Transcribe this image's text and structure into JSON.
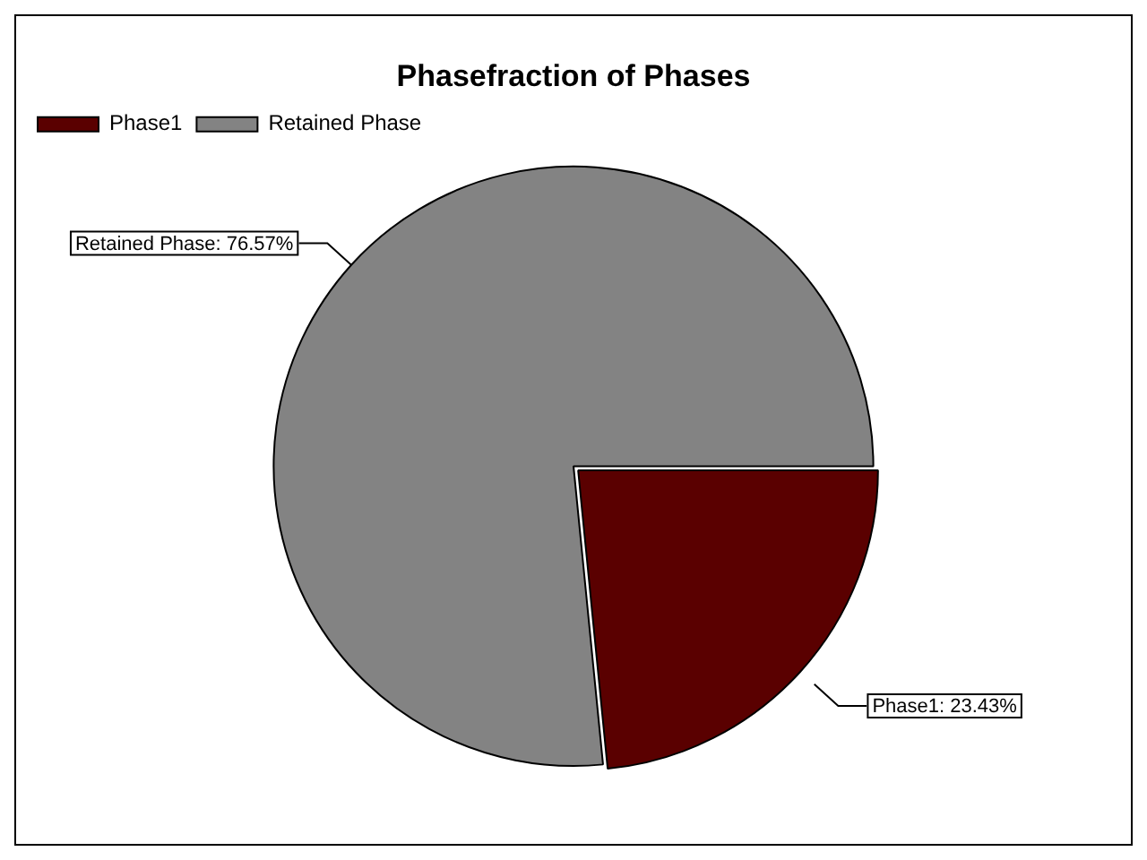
{
  "chart_data": {
    "type": "pie",
    "title": "Phasefraction of Phases",
    "categories": [
      "Phase1",
      "Retained Phase"
    ],
    "values": [
      23.43,
      76.57
    ],
    "colors": [
      "#5a0000",
      "#838383"
    ],
    "value_labels": [
      "Phase1: 23.43%",
      "Retained Phase: 76.57%"
    ],
    "legend": "top left"
  }
}
